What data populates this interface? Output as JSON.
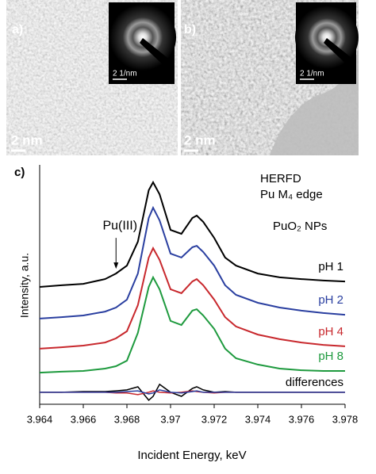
{
  "panels": [
    {
      "label": "a)",
      "scale": "2 nm",
      "inset_scale": "2 1/nm"
    },
    {
      "label": "b)",
      "scale": "2 nm",
      "inset_scale": "2 1/nm"
    }
  ],
  "chart_data": {
    "type": "line",
    "panel_label": "c)",
    "annotations": [
      "HERFD",
      "Pu M₄ edge",
      "PuO₂ NPs"
    ],
    "arrow_label": {
      "text": "Pu(III)",
      "x": 3.9675
    },
    "x_label": "Incident Energy, keV",
    "y_label": "Intensity, a.u.",
    "xlim": [
      3.964,
      3.978
    ],
    "xticks": [
      3.964,
      3.966,
      3.968,
      3.97,
      3.972,
      3.974,
      3.976,
      3.978
    ],
    "ylim": [
      0,
      10
    ],
    "x": [
      3.964,
      3.965,
      3.966,
      3.967,
      3.9675,
      3.968,
      3.9685,
      3.969,
      3.9692,
      3.9695,
      3.97,
      3.9705,
      3.971,
      3.9712,
      3.9715,
      3.972,
      3.9725,
      3.973,
      3.974,
      3.975,
      3.976,
      3.977,
      3.978
    ],
    "series": [
      {
        "name": "pH 1",
        "color": "#000000",
        "values": [
          4.9,
          4.97,
          5.03,
          5.23,
          5.46,
          5.79,
          6.79,
          8.94,
          9.27,
          8.77,
          7.28,
          7.12,
          7.78,
          7.88,
          7.62,
          6.95,
          6.13,
          5.79,
          5.46,
          5.3,
          5.23,
          5.17,
          5.13
        ]
      },
      {
        "name": "pH 2",
        "color": "#2a3fa0",
        "values": [
          3.58,
          3.64,
          3.71,
          3.87,
          4.04,
          4.37,
          5.46,
          7.78,
          8.21,
          7.68,
          6.29,
          6.13,
          6.56,
          6.62,
          6.36,
          5.79,
          4.97,
          4.57,
          4.24,
          4.04,
          3.91,
          3.81,
          3.74
        ]
      },
      {
        "name": "pH 4",
        "color": "#c8282d",
        "values": [
          2.32,
          2.38,
          2.45,
          2.58,
          2.75,
          3.05,
          4.14,
          6.13,
          6.52,
          6.03,
          4.8,
          4.64,
          5.13,
          5.23,
          4.97,
          4.37,
          3.64,
          3.25,
          2.91,
          2.72,
          2.58,
          2.48,
          2.42
        ]
      },
      {
        "name": "pH 8",
        "color": "#1e9a3e",
        "values": [
          1.32,
          1.36,
          1.39,
          1.49,
          1.59,
          1.82,
          2.98,
          4.9,
          5.3,
          4.8,
          3.48,
          3.31,
          3.91,
          3.97,
          3.71,
          3.15,
          2.32,
          1.92,
          1.66,
          1.49,
          1.42,
          1.39,
          1.39
        ]
      }
    ],
    "differences": {
      "label": "differences",
      "series": [
        {
          "color": "#000000",
          "values": [
            0.5,
            0.5,
            0.53,
            0.53,
            0.56,
            0.6,
            0.73,
            0.17,
            0.33,
            0.83,
            0.5,
            0.33,
            0.66,
            0.73,
            0.6,
            0.5,
            0.53,
            0.5,
            0.5,
            0.5,
            0.5,
            0.5,
            0.5
          ]
        },
        {
          "color": "#c8282d",
          "values": [
            0.5,
            0.5,
            0.5,
            0.5,
            0.47,
            0.47,
            0.4,
            0.5,
            0.56,
            0.5,
            0.47,
            0.5,
            0.56,
            0.53,
            0.5,
            0.47,
            0.5,
            0.5,
            0.5,
            0.5,
            0.5,
            0.5,
            0.5
          ]
        },
        {
          "color": "#2a3fa0",
          "values": [
            0.5,
            0.5,
            0.5,
            0.5,
            0.5,
            0.53,
            0.56,
            0.43,
            0.47,
            0.6,
            0.5,
            0.47,
            0.53,
            0.56,
            0.5,
            0.5,
            0.5,
            0.5,
            0.5,
            0.5,
            0.5,
            0.5,
            0.5
          ]
        }
      ]
    }
  }
}
